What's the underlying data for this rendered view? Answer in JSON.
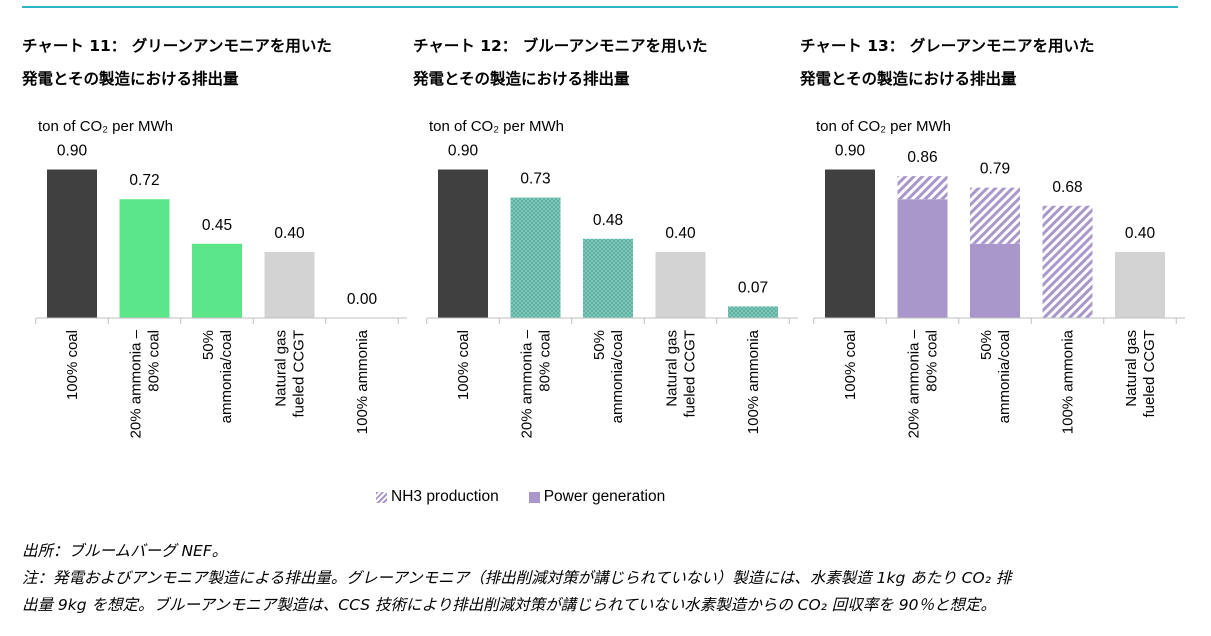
{
  "chart_data": [
    {
      "type": "bar",
      "title": "チャート 11： グリーンアンモニアを用いた\n発電とその製造における排出量",
      "ylabel": "ton of CO₂ per MWh",
      "ylim": [
        0,
        1.0
      ],
      "grid": false,
      "categories": [
        "100% coal",
        "20% ammonia –\n80% coal",
        "50%\nammonia/coal",
        "Natural gas\nfueled CCGT",
        "100% ammonia"
      ],
      "values": [
        0.9,
        0.72,
        0.45,
        0.4,
        0.0
      ],
      "value_labels": [
        "0.90",
        "0.72",
        "0.45",
        "0.40",
        "0.00"
      ],
      "colors": [
        "#404040",
        "#5ce68a",
        "#5ce68a",
        "#d3d3d3",
        "#5ce68a"
      ]
    },
    {
      "type": "bar",
      "title": "チャート 12： ブルーアンモニアを用いた\n発電とその製造における排出量",
      "ylabel": "ton of CO₂ per MWh",
      "ylim": [
        0,
        1.0
      ],
      "grid": false,
      "categories": [
        "100% coal",
        "20% ammonia –\n80% coal",
        "50%\nammonia/coal",
        "Natural gas\nfueled CCGT",
        "100% ammonia"
      ],
      "values": [
        0.9,
        0.73,
        0.48,
        0.4,
        0.07
      ],
      "value_labels": [
        "0.90",
        "0.73",
        "0.48",
        "0.40",
        "0.07"
      ],
      "colors": [
        "#404040",
        "#5fb0a4",
        "#5fb0a4",
        "#d3d3d3",
        "#5fb0a4"
      ]
    },
    {
      "type": "bar",
      "stacked": true,
      "title": "チャート 13： グレーアンモニアを用いた\n発電とその製造における排出量",
      "ylabel": "ton of CO₂ per MWh",
      "ylim": [
        0,
        1.0
      ],
      "grid": false,
      "categories": [
        "100% coal",
        "20% ammonia –\n80% coal",
        "50%\nammonia/coal",
        "100% ammonia",
        "Natural gas\nfueled CCGT"
      ],
      "totals": [
        0.9,
        0.86,
        0.79,
        0.68,
        0.4
      ],
      "value_labels": [
        "0.90",
        "0.86",
        "0.79",
        "0.68",
        "0.40"
      ],
      "series": [
        {
          "name": "Power generation",
          "values": [
            0.9,
            0.72,
            0.45,
            0.0,
            0.4
          ]
        },
        {
          "name": "NH3 production",
          "values": [
            0.0,
            0.14,
            0.34,
            0.68,
            0.0
          ]
        }
      ],
      "colors": [
        "#404040",
        "#a997cc",
        "#a997cc",
        "#a997cc",
        "#d3d3d3"
      ],
      "legend": [
        "NH3 production",
        "Power generation"
      ],
      "legend_position": "bottom"
    }
  ],
  "notes": {
    "source": "出所：ブルームバーグ NEF。",
    "note_line1": "注：発電およびアンモニア製造による排出量。グレーアンモニア（排出削減対策が講じられていない）製造には、水素製造 1kg あたり CO₂ 排",
    "note_line2": "出量 9kg を想定。ブルーアンモニア製造は、CCS 技術により排出削減対策が講じられていない水素製造からの CO₂ 回収率を 90％と想定。"
  }
}
